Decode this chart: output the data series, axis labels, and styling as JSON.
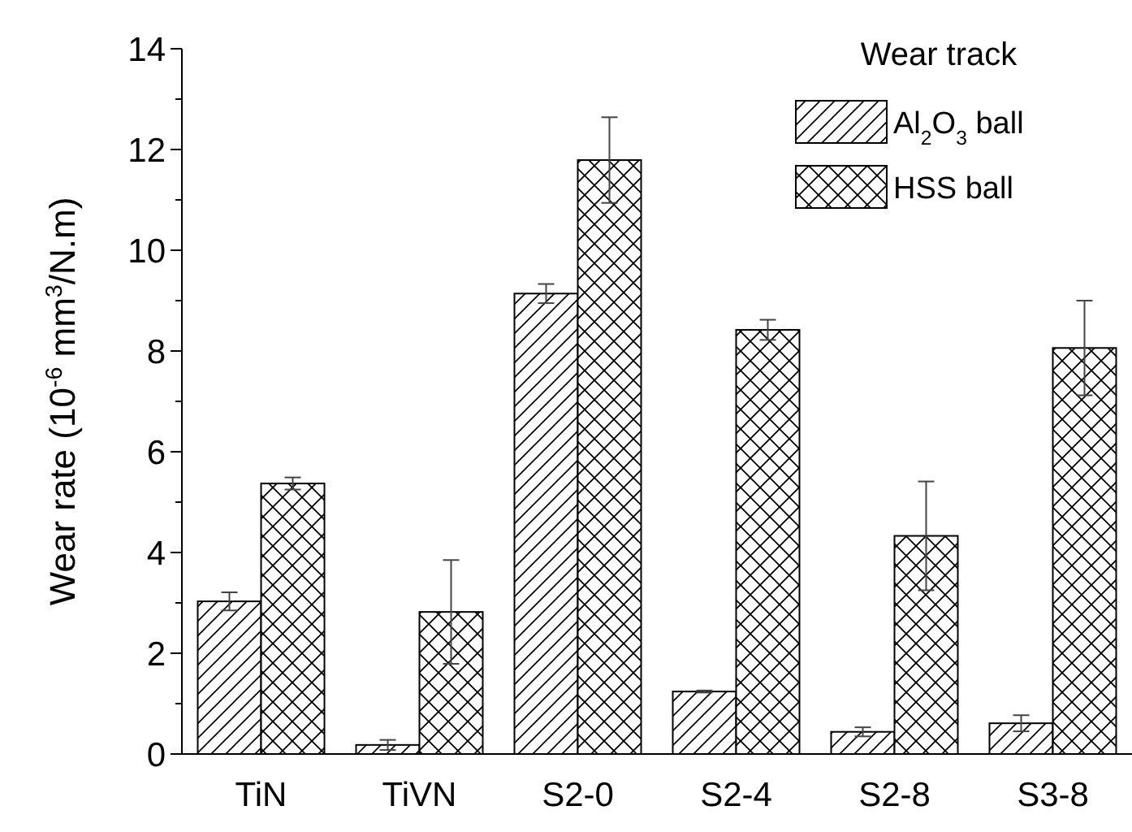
{
  "chart_data": {
    "type": "bar",
    "categories": [
      "TiN",
      "TiVN",
      "S2-0",
      "S2-4",
      "S2-8",
      "S3-8"
    ],
    "ylabel": "Wear rate (10$^{-6}$ mm$^{3}$/N.m)",
    "legend_title": "Wear track",
    "series": [
      {
        "name": "Al$_{2}$O$_{3}$ ball",
        "color": "#000000",
        "values": [
          3.03,
          0.18,
          9.14,
          1.24,
          0.44,
          0.61
        ],
        "errors": [
          0.18,
          0.1,
          0.19,
          0.02,
          0.09,
          0.16
        ]
      },
      {
        "name": "HSS ball",
        "color": "#000000",
        "values": [
          5.37,
          2.82,
          11.79,
          8.42,
          4.33,
          8.06
        ],
        "errors": [
          0.12,
          1.03,
          0.85,
          0.2,
          1.08,
          0.94
        ]
      }
    ],
    "ylim": [
      0,
      14
    ],
    "yticks": [
      0,
      {
        "value": 1,
        "label": null
      },
      2,
      {
        "value": 3,
        "label": null
      },
      4,
      {
        "value": 5,
        "label": null
      },
      6,
      {
        "value": 7,
        "label": null
      },
      8,
      {
        "value": 9,
        "label": null
      },
      10,
      {
        "value": 11,
        "label": null
      },
      12,
      {
        "value": 13,
        "label": null
      },
      14
    ],
    "legend": "top right",
    "grid": false
  }
}
